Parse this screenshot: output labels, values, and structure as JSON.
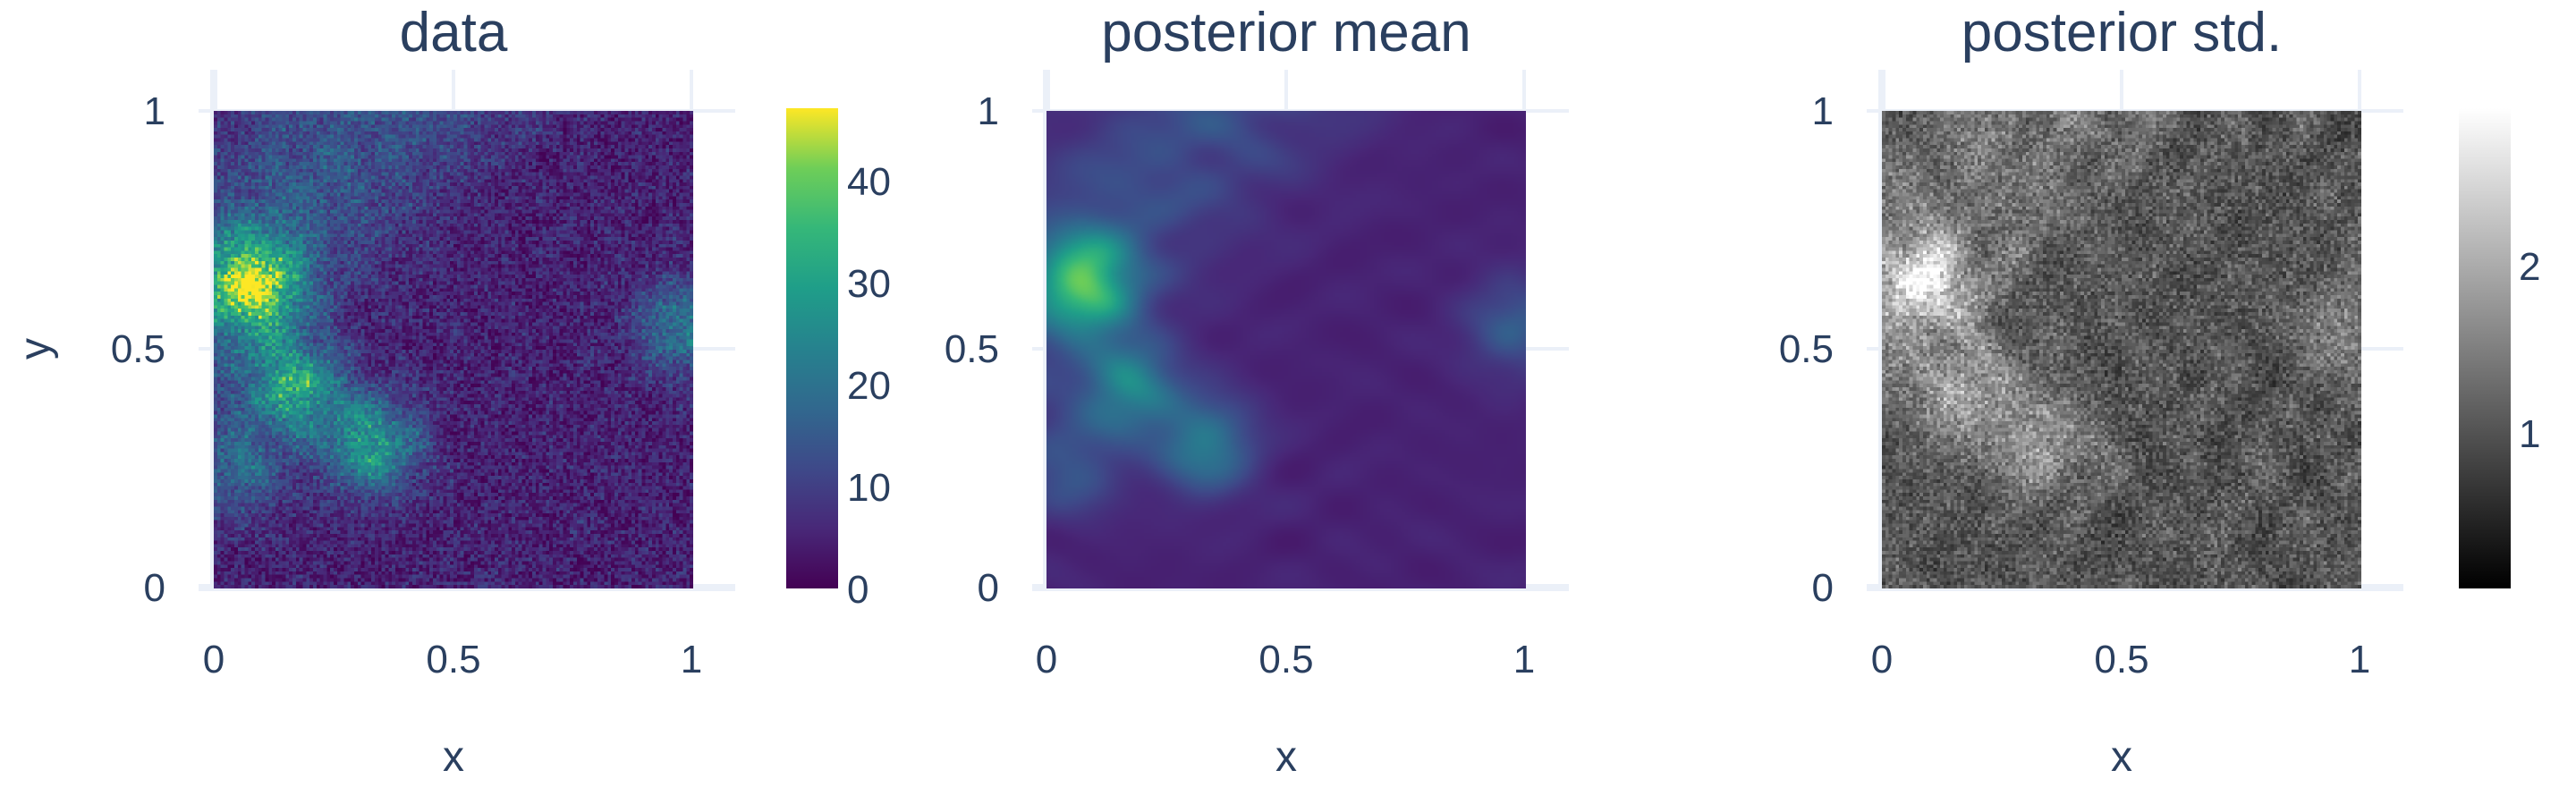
{
  "chart_data": [
    {
      "type": "heatmap",
      "title": "data",
      "xlabel": "x",
      "ylabel": "y",
      "xlim": [
        0,
        1
      ],
      "ylim": [
        0,
        1
      ],
      "xticks": [
        "0",
        "0.5",
        "1"
      ],
      "yticks": [
        "0",
        "0.5",
        "1"
      ],
      "colorscale": "viridis",
      "color_range": [
        0,
        47
      ],
      "colorbar_ticks": [
        "0",
        "10",
        "20",
        "30",
        "40"
      ],
      "noise": "high",
      "hotspots": [
        {
          "x": 0.08,
          "y": 0.64,
          "value": 42
        },
        {
          "x": 0.17,
          "y": 0.42,
          "value": 30
        },
        {
          "x": 0.33,
          "y": 0.3,
          "value": 27
        },
        {
          "x": 0.98,
          "y": 0.55,
          "value": 20
        },
        {
          "x": 0.05,
          "y": 0.25,
          "value": 18
        }
      ],
      "background_value": 5,
      "grid": true
    },
    {
      "type": "heatmap",
      "title": "posterior mean",
      "xlabel": "x",
      "ylabel": "",
      "xlim": [
        0,
        1
      ],
      "ylim": [
        0,
        1
      ],
      "xticks": [
        "0",
        "0.5",
        "1"
      ],
      "yticks": [
        "0",
        "0.5",
        "1"
      ],
      "colorscale": "viridis",
      "color_range": [
        0,
        47
      ],
      "noise": "none",
      "hotspots": [
        {
          "x": 0.08,
          "y": 0.64,
          "value": 35
        },
        {
          "x": 0.17,
          "y": 0.42,
          "value": 24
        },
        {
          "x": 0.33,
          "y": 0.3,
          "value": 22
        },
        {
          "x": 0.98,
          "y": 0.55,
          "value": 15
        },
        {
          "x": 0.05,
          "y": 0.25,
          "value": 14
        }
      ],
      "background_value": 5,
      "grid": true
    },
    {
      "type": "heatmap",
      "title": "posterior std.",
      "xlabel": "x",
      "ylabel": "",
      "xlim": [
        0,
        1
      ],
      "ylim": [
        0,
        1
      ],
      "xticks": [
        "0",
        "0.5",
        "1"
      ],
      "yticks": [
        "0",
        "0.5",
        "1"
      ],
      "colorscale": "greys",
      "color_range": [
        0,
        3
      ],
      "colorbar_ticks": [
        "1",
        "2"
      ],
      "noise": "high",
      "hotspots": [
        {
          "x": 0.08,
          "y": 0.64,
          "value": 2.5
        },
        {
          "x": 0.17,
          "y": 0.42,
          "value": 2.0
        },
        {
          "x": 0.33,
          "y": 0.3,
          "value": 1.9
        },
        {
          "x": 0.98,
          "y": 0.55,
          "value": 1.6
        }
      ],
      "background_value": 1.0,
      "grid": true
    }
  ],
  "colors": {
    "text": "#2a3f5f",
    "grid": "#ebf0f8",
    "background": "#ffffff"
  }
}
